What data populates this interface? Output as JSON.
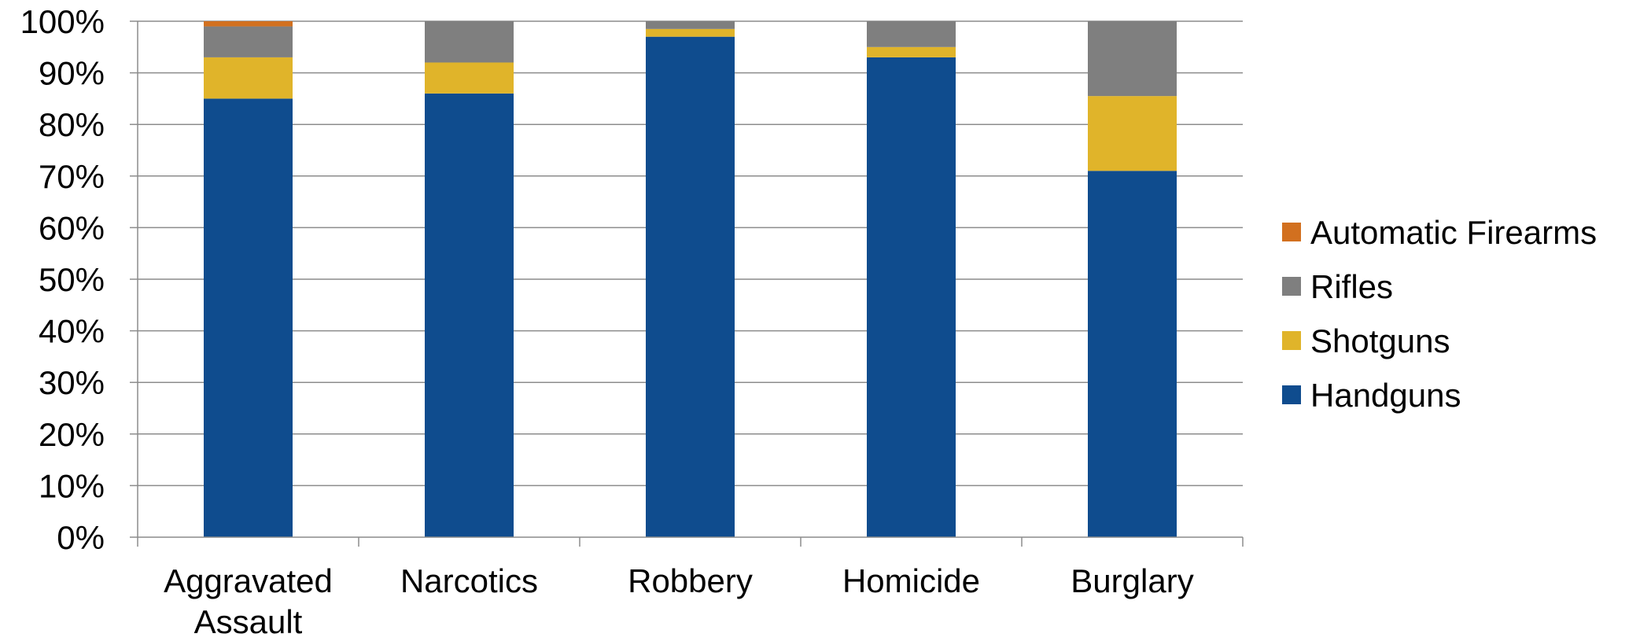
{
  "chart_data": {
    "type": "bar",
    "stacked": true,
    "categories": [
      [
        "Aggravated",
        "Assault"
      ],
      [
        "Narcotics"
      ],
      [
        "Robbery"
      ],
      [
        "Homicide"
      ],
      [
        "Burglary"
      ]
    ],
    "series": [
      {
        "name": "Handguns",
        "color": "#0F4C8E",
        "values": [
          85,
          86,
          97,
          93,
          71
        ]
      },
      {
        "name": "Shotguns",
        "color": "#E0B42A",
        "values": [
          8,
          6,
          1.5,
          2,
          14.5
        ]
      },
      {
        "name": "Rifles",
        "color": "#7F7F7F",
        "values": [
          6,
          8,
          1.5,
          5,
          14.5
        ]
      },
      {
        "name": "Automatic Firearms",
        "color": "#D2701F",
        "values": [
          1,
          0,
          0,
          0,
          0
        ]
      }
    ],
    "legend_order": [
      "Automatic Firearms",
      "Rifles",
      "Shotguns",
      "Handguns"
    ],
    "ylim": [
      0,
      100
    ],
    "yticks": [
      0,
      10,
      20,
      30,
      40,
      50,
      60,
      70,
      80,
      90,
      100
    ],
    "ytick_labels": [
      "0%",
      "10%",
      "20%",
      "30%",
      "40%",
      "50%",
      "60%",
      "70%",
      "80%",
      "90%",
      "100%"
    ],
    "grid": true,
    "legend_position": "right",
    "title": "",
    "xlabel": "",
    "ylabel": ""
  }
}
